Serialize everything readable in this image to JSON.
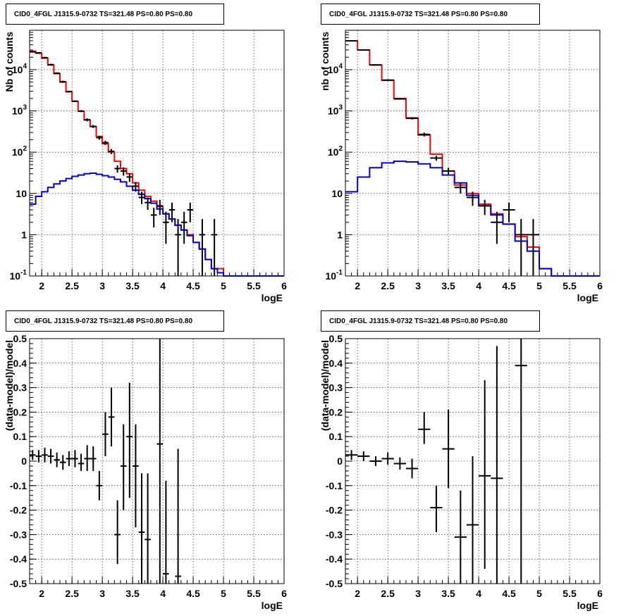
{
  "colors": {
    "model": "#ff0000",
    "component": "#0000cc",
    "data": "#000000"
  },
  "chart_data": [
    {
      "type": "line",
      "panel": "top-left",
      "title": "CID0_4FGL J1315.9-0732 TS=321.48 PS=0.80 PS=0.80",
      "xlabel": "logE",
      "ylabel": "Nb of counts",
      "log_y": true,
      "xlim": [
        1.8,
        6.0
      ],
      "ylim": [
        0.1,
        90000
      ],
      "x_ticks": [
        "2",
        "2.5",
        "3",
        "3.5",
        "4",
        "4.5",
        "5",
        "5.5",
        "6"
      ],
      "y_ticks": [
        "10^{-1}",
        "1",
        "10",
        "10^{2}",
        "10^{3}",
        "10^{4}"
      ],
      "grid": true,
      "series": [
        {
          "style": "step",
          "color_key": "model",
          "edges": [
            1.8,
            1.9,
            2.0,
            2.1,
            2.2,
            2.3,
            2.4,
            2.5,
            2.6,
            2.7,
            2.8,
            2.9,
            3.0,
            3.1,
            3.2,
            3.3,
            3.4,
            3.5,
            3.6,
            3.7,
            3.8,
            3.9,
            4.0,
            4.1,
            4.2,
            4.3,
            4.4,
            4.5,
            4.6,
            4.7,
            4.8,
            4.9,
            5.0,
            5.1,
            5.2,
            5.3,
            5.4,
            5.5,
            5.6,
            5.7,
            5.8,
            5.9,
            6.0
          ],
          "values": [
            28000,
            25000,
            19000,
            13000,
            8000,
            5000,
            2900,
            1700,
            980,
            600,
            420,
            240,
            160,
            100,
            60,
            40,
            30,
            18,
            12,
            8.5,
            6.5,
            4.8,
            3.2,
            2.4,
            1.7,
            1.3,
            1.0,
            0.65,
            0.45,
            0.25,
            0.15,
            0.15,
            0.1,
            0.1,
            0.1,
            0.1,
            0.1,
            0.1,
            0.1,
            0.1,
            0.1,
            0.1
          ]
        },
        {
          "style": "step",
          "color_key": "component",
          "edges": [
            1.8,
            1.9,
            2.0,
            2.1,
            2.2,
            2.3,
            2.4,
            2.5,
            2.6,
            2.7,
            2.8,
            2.9,
            3.0,
            3.1,
            3.2,
            3.3,
            3.4,
            3.5,
            3.6,
            3.7,
            3.8,
            3.9,
            4.0,
            4.1,
            4.2,
            4.3,
            4.4,
            4.5,
            4.6,
            4.7,
            4.8,
            4.9,
            5.0,
            5.1,
            5.2,
            5.3,
            5.4,
            5.5,
            5.6,
            5.7,
            5.8,
            5.9,
            6.0
          ],
          "values": [
            5.5,
            8.5,
            11,
            14,
            17,
            20,
            23,
            26,
            28,
            30,
            31,
            29,
            27,
            25,
            22,
            19,
            15,
            12,
            9.5,
            7.5,
            5.8,
            4.2,
            3.2,
            2.4,
            1.7,
            1.3,
            0.95,
            0.65,
            0.45,
            0.25,
            0.15,
            0.12,
            0.1,
            0.1,
            0.1,
            0.1,
            0.1,
            0.1,
            0.1,
            0.1,
            0.1,
            0.1
          ]
        },
        {
          "style": "errorbar",
          "color_key": "data",
          "half_width": 0.05,
          "points": [
            {
              "x": 1.85,
              "y": 27000,
              "lo": 26000,
              "hi": 28000
            },
            {
              "x": 1.95,
              "y": 25500,
              "lo": 24500,
              "hi": 26500
            },
            {
              "x": 2.05,
              "y": 19500,
              "lo": 18500,
              "hi": 20500
            },
            {
              "x": 2.15,
              "y": 13200,
              "lo": 12500,
              "hi": 13900
            },
            {
              "x": 2.25,
              "y": 8200,
              "lo": 7800,
              "hi": 8600
            },
            {
              "x": 2.35,
              "y": 5100,
              "lo": 4800,
              "hi": 5400
            },
            {
              "x": 2.45,
              "y": 2950,
              "lo": 2800,
              "hi": 3100
            },
            {
              "x": 2.55,
              "y": 1720,
              "lo": 1650,
              "hi": 1800
            },
            {
              "x": 2.65,
              "y": 990,
              "lo": 930,
              "hi": 1050
            },
            {
              "x": 2.75,
              "y": 610,
              "lo": 560,
              "hi": 660
            },
            {
              "x": 2.85,
              "y": 420,
              "lo": 385,
              "hi": 455
            },
            {
              "x": 2.95,
              "y": 225,
              "lo": 200,
              "hi": 250
            },
            {
              "x": 3.05,
              "y": 170,
              "lo": 150,
              "hi": 190
            },
            {
              "x": 3.15,
              "y": 105,
              "lo": 90,
              "hi": 120
            },
            {
              "x": 3.25,
              "y": 40,
              "lo": 32,
              "hi": 48
            },
            {
              "x": 3.35,
              "y": 35,
              "lo": 27,
              "hi": 43
            },
            {
              "x": 3.45,
              "y": 25,
              "lo": 19,
              "hi": 31
            },
            {
              "x": 3.55,
              "y": 15,
              "lo": 11,
              "hi": 19
            },
            {
              "x": 3.65,
              "y": 8,
              "lo": 5.5,
              "hi": 11
            },
            {
              "x": 3.75,
              "y": 6,
              "lo": 4,
              "hi": 8
            },
            {
              "x": 3.85,
              "y": 3,
              "lo": 1.5,
              "hi": 4.5
            },
            {
              "x": 3.95,
              "y": 5,
              "lo": 3,
              "hi": 7
            },
            {
              "x": 4.05,
              "y": 2,
              "lo": 0.6,
              "hi": 3.6
            },
            {
              "x": 4.15,
              "y": 4,
              "lo": 2,
              "hi": 6
            },
            {
              "x": 4.25,
              "y": 1,
              "lo": 0.1,
              "hi": 2.4
            },
            {
              "x": 4.35,
              "y": 2,
              "lo": 0.6,
              "hi": 3.6
            },
            {
              "x": 4.45,
              "y": 4,
              "lo": 2,
              "hi": 6
            },
            {
              "x": 4.65,
              "y": 1,
              "lo": 0.1,
              "hi": 2.4
            },
            {
              "x": 4.85,
              "y": 1,
              "lo": 0.1,
              "hi": 2.4
            }
          ]
        }
      ]
    },
    {
      "type": "line",
      "panel": "top-right",
      "title": "CID0_4FGL J1315.9-0732 TS=321.48 PS=0.80 PS=0.80",
      "xlabel": "logE",
      "ylabel": "nb of counts",
      "log_y": true,
      "xlim": [
        1.8,
        6.0
      ],
      "ylim": [
        0.1,
        90000
      ],
      "x_ticks": [
        "2",
        "2.5",
        "3",
        "3.5",
        "4",
        "4.5",
        "5",
        "5.5",
        "6"
      ],
      "y_ticks": [
        "10^{-1}",
        "1",
        "10",
        "10^{2}",
        "10^{3}",
        "10^{4}"
      ],
      "grid": true,
      "series": [
        {
          "style": "step",
          "color_key": "model",
          "edges": [
            1.8,
            2.0,
            2.2,
            2.4,
            2.6,
            2.8,
            3.0,
            3.2,
            3.4,
            3.6,
            3.8,
            4.0,
            4.2,
            4.4,
            4.6,
            4.8,
            5.0,
            5.2,
            5.4,
            5.6,
            5.8,
            6.0
          ],
          "values": [
            50000,
            30000,
            13000,
            5500,
            2000,
            680,
            260,
            90,
            35,
            16,
            10,
            5.5,
            3.2,
            1.8,
            0.9,
            0.5,
            0.15,
            0.1,
            0.1,
            0.1,
            0.1
          ]
        },
        {
          "style": "step",
          "color_key": "component",
          "edges": [
            1.8,
            2.0,
            2.2,
            2.4,
            2.6,
            2.8,
            3.0,
            3.2,
            3.4,
            3.6,
            3.8,
            4.0,
            4.2,
            4.4,
            4.6,
            4.8,
            5.0,
            5.2,
            5.4,
            5.6,
            5.8,
            6.0
          ],
          "values": [
            11,
            25,
            42,
            55,
            60,
            58,
            52,
            42,
            28,
            18,
            9,
            5,
            3,
            1.8,
            0.7,
            0.4,
            0.15,
            0.1,
            0.1,
            0.1,
            0.1
          ]
        },
        {
          "style": "errorbar",
          "color_key": "data",
          "half_width": 0.1,
          "points": [
            {
              "x": 1.9,
              "y": 50000,
              "lo": 48000,
              "hi": 52000
            },
            {
              "x": 2.1,
              "y": 30000,
              "lo": 29000,
              "hi": 31000
            },
            {
              "x": 2.3,
              "y": 13000,
              "lo": 12500,
              "hi": 13500
            },
            {
              "x": 2.5,
              "y": 5600,
              "lo": 5400,
              "hi": 5800
            },
            {
              "x": 2.7,
              "y": 1950,
              "lo": 1870,
              "hi": 2030
            },
            {
              "x": 2.9,
              "y": 660,
              "lo": 620,
              "hi": 700
            },
            {
              "x": 3.1,
              "y": 270,
              "lo": 240,
              "hi": 300
            },
            {
              "x": 3.3,
              "y": 72,
              "lo": 62,
              "hi": 82
            },
            {
              "x": 3.5,
              "y": 35,
              "lo": 28,
              "hi": 42
            },
            {
              "x": 3.7,
              "y": 14,
              "lo": 10,
              "hi": 18
            },
            {
              "x": 3.9,
              "y": 8,
              "lo": 5,
              "hi": 11
            },
            {
              "x": 4.1,
              "y": 5,
              "lo": 3,
              "hi": 7
            },
            {
              "x": 4.3,
              "y": 2,
              "lo": 0.6,
              "hi": 3.6
            },
            {
              "x": 4.5,
              "y": 4,
              "lo": 2,
              "hi": 6
            },
            {
              "x": 4.7,
              "y": 1,
              "lo": 0.1,
              "hi": 2.4
            },
            {
              "x": 4.9,
              "y": 1,
              "lo": 0.1,
              "hi": 2.4
            }
          ]
        }
      ]
    },
    {
      "type": "scatter",
      "panel": "bottom-left",
      "title": "CID0_4FGL J1315.9-0732 TS=321.48 PS=0.80 PS=0.80",
      "xlabel": "logE",
      "ylabel": "(data-model)/model",
      "log_y": false,
      "xlim": [
        1.8,
        6.0
      ],
      "ylim": [
        -0.5,
        0.5
      ],
      "x_ticks": [
        "2",
        "2.5",
        "3",
        "3.5",
        "4",
        "4.5",
        "5",
        "5.5",
        "6"
      ],
      "y_ticks": [
        "-0.5",
        "-0.4",
        "-0.3",
        "-0.2",
        "-0.1",
        "0",
        "0.1",
        "0.2",
        "0.3",
        "0.4",
        "0.5"
      ],
      "grid": true,
      "series": [
        {
          "style": "errorbar",
          "color_key": "data",
          "half_width": 0.05,
          "points": [
            {
              "x": 1.85,
              "y": 0.025,
              "lo": 0.005,
              "hi": 0.045
            },
            {
              "x": 1.95,
              "y": 0.02,
              "lo": -0.005,
              "hi": 0.045
            },
            {
              "x": 2.05,
              "y": 0.025,
              "lo": -0.005,
              "hi": 0.055
            },
            {
              "x": 2.15,
              "y": 0.02,
              "lo": -0.01,
              "hi": 0.05
            },
            {
              "x": 2.25,
              "y": 0.005,
              "lo": -0.025,
              "hi": 0.035
            },
            {
              "x": 2.35,
              "y": -0.005,
              "lo": -0.035,
              "hi": 0.025
            },
            {
              "x": 2.45,
              "y": 0.01,
              "lo": -0.02,
              "hi": 0.04
            },
            {
              "x": 2.55,
              "y": 0.01,
              "lo": -0.025,
              "hi": 0.045
            },
            {
              "x": 2.65,
              "y": -0.01,
              "lo": -0.04,
              "hi": 0.03
            },
            {
              "x": 2.75,
              "y": 0.01,
              "lo": -0.04,
              "hi": 0.065
            },
            {
              "x": 2.85,
              "y": 0.01,
              "lo": -0.04,
              "hi": 0.06
            },
            {
              "x": 2.95,
              "y": -0.1,
              "lo": -0.16,
              "hi": -0.04
            },
            {
              "x": 3.05,
              "y": 0.11,
              "lo": 0.02,
              "hi": 0.2
            },
            {
              "x": 3.15,
              "y": 0.18,
              "lo": 0.06,
              "hi": 0.3
            },
            {
              "x": 3.25,
              "y": -0.3,
              "lo": -0.42,
              "hi": -0.16
            },
            {
              "x": 3.35,
              "y": -0.02,
              "lo": -0.2,
              "hi": 0.15
            },
            {
              "x": 3.45,
              "y": 0.1,
              "lo": -0.15,
              "hi": 0.32
            },
            {
              "x": 3.55,
              "y": -0.02,
              "lo": -0.27,
              "hi": 0.15
            },
            {
              "x": 3.65,
              "y": -0.29,
              "lo": -0.5,
              "hi": -0.05
            },
            {
              "x": 3.75,
              "y": -0.32,
              "lo": -0.5,
              "hi": -0.05
            },
            {
              "x": 3.95,
              "y": 0.07,
              "lo": -0.5,
              "hi": 0.5
            },
            {
              "x": 4.05,
              "y": -0.46,
              "lo": -0.5,
              "hi": -0.08
            },
            {
              "x": 4.25,
              "y": -0.47,
              "lo": -0.5,
              "hi": 0.05
            }
          ]
        }
      ]
    },
    {
      "type": "scatter",
      "panel": "bottom-right",
      "title": "CID0_4FGL J1315.9-0732 TS=321.48 PS=0.80 PS=0.80",
      "xlabel": "logE",
      "ylabel": "(data-model)/model",
      "log_y": false,
      "xlim": [
        1.8,
        6.0
      ],
      "ylim": [
        -0.5,
        0.5
      ],
      "x_ticks": [
        "2",
        "2.5",
        "3",
        "3.5",
        "4",
        "4.5",
        "5",
        "5.5",
        "6"
      ],
      "y_ticks": [
        "-0.5",
        "-0.4",
        "-0.3",
        "-0.2",
        "-0.1",
        "0",
        "0.1",
        "0.2",
        "0.3",
        "0.4",
        "0.5"
      ],
      "grid": true,
      "series": [
        {
          "style": "errorbar",
          "color_key": "data",
          "half_width": 0.1,
          "points": [
            {
              "x": 1.9,
              "y": 0.025,
              "lo": 0.005,
              "hi": 0.045
            },
            {
              "x": 2.1,
              "y": 0.02,
              "lo": 0.0,
              "hi": 0.04
            },
            {
              "x": 2.3,
              "y": 0.0,
              "lo": -0.02,
              "hi": 0.02
            },
            {
              "x": 2.5,
              "y": 0.01,
              "lo": -0.015,
              "hi": 0.035
            },
            {
              "x": 2.7,
              "y": -0.01,
              "lo": -0.035,
              "hi": 0.015
            },
            {
              "x": 2.9,
              "y": -0.03,
              "lo": -0.07,
              "hi": 0.01
            },
            {
              "x": 3.1,
              "y": 0.13,
              "lo": 0.07,
              "hi": 0.2
            },
            {
              "x": 3.3,
              "y": -0.19,
              "lo": -0.29,
              "hi": -0.1
            },
            {
              "x": 3.5,
              "y": 0.05,
              "lo": -0.11,
              "hi": 0.21
            },
            {
              "x": 3.7,
              "y": -0.31,
              "lo": -0.5,
              "hi": -0.12
            },
            {
              "x": 3.9,
              "y": -0.26,
              "lo": -0.5,
              "hi": 0.02
            },
            {
              "x": 4.1,
              "y": -0.06,
              "lo": -0.44,
              "hi": 0.33
            },
            {
              "x": 4.3,
              "y": -0.07,
              "lo": -0.5,
              "hi": 0.47
            },
            {
              "x": 4.7,
              "y": 0.39,
              "lo": -0.5,
              "hi": 0.5
            }
          ]
        }
      ]
    }
  ]
}
